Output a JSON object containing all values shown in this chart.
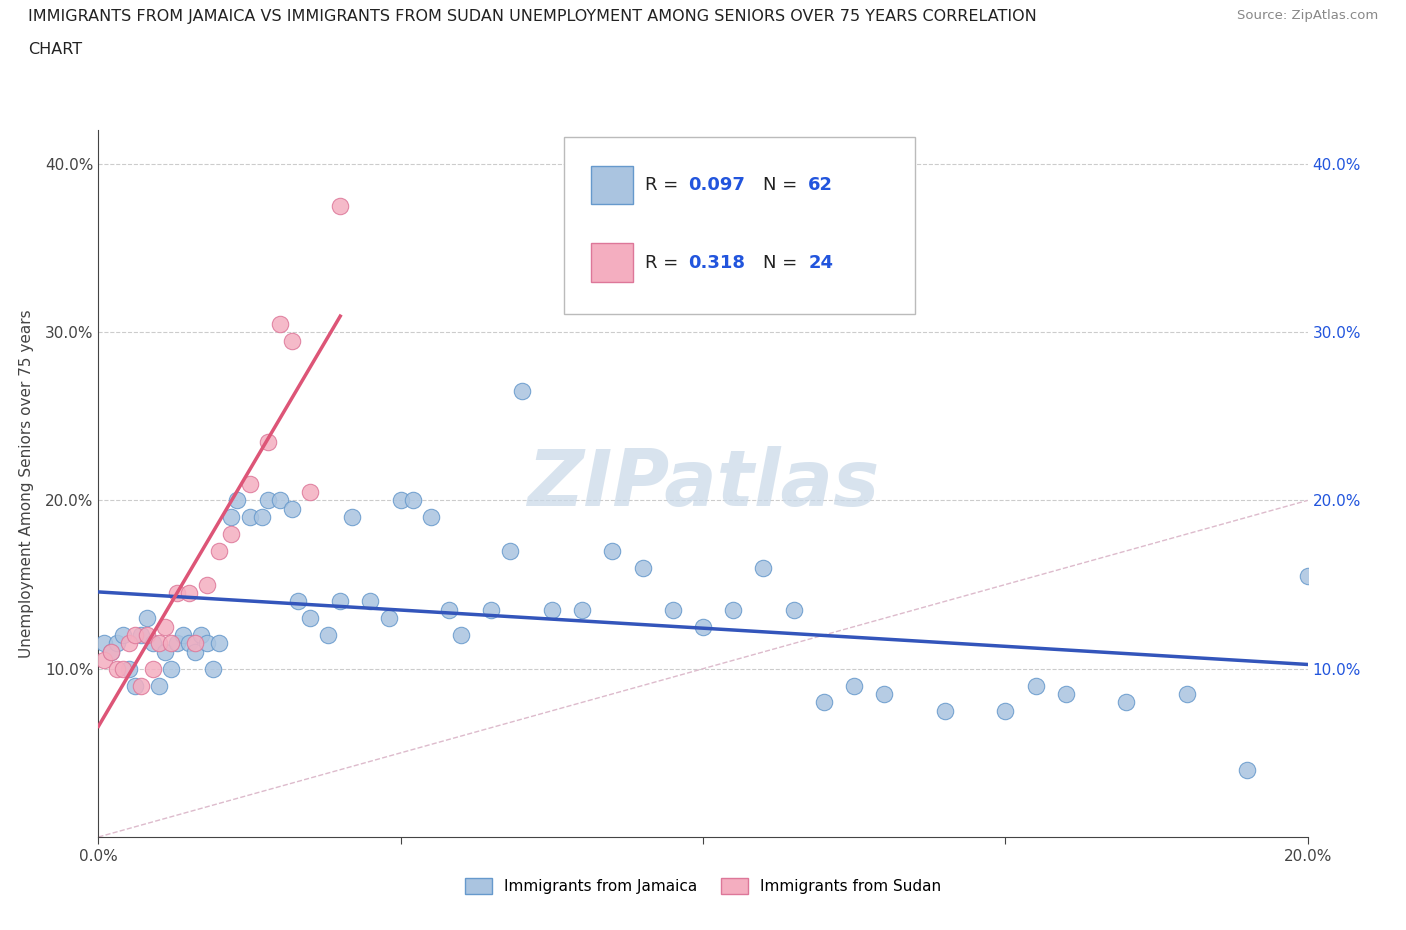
{
  "title_line1": "IMMIGRANTS FROM JAMAICA VS IMMIGRANTS FROM SUDAN UNEMPLOYMENT AMONG SENIORS OVER 75 YEARS CORRELATION",
  "title_line2": "CHART",
  "source": "Source: ZipAtlas.com",
  "ylabel": "Unemployment Among Seniors over 75 years",
  "xlim": [
    0.0,
    0.2
  ],
  "ylim": [
    0.0,
    0.42
  ],
  "jamaica_color": "#aac4e0",
  "sudan_color": "#f4aec0",
  "jamaica_edge": "#6699cc",
  "sudan_edge": "#dd7799",
  "jamaica_line_color": "#3355bb",
  "sudan_line_color": "#dd5577",
  "diag_color": "#cccccc",
  "jamaica_R": 0.097,
  "jamaica_N": 62,
  "sudan_R": 0.318,
  "sudan_N": 24,
  "legend_color": "#2255dd",
  "watermark_color": "#c8d8e8",
  "bg_color": "#ffffff",
  "grid_color": "#cccccc",
  "right_tick_color": "#2255dd",
  "jamaica_x": [
    0.001,
    0.002,
    0.003,
    0.004,
    0.005,
    0.006,
    0.007,
    0.008,
    0.009,
    0.01,
    0.011,
    0.012,
    0.013,
    0.014,
    0.015,
    0.016,
    0.017,
    0.018,
    0.019,
    0.02,
    0.022,
    0.023,
    0.025,
    0.027,
    0.028,
    0.03,
    0.032,
    0.033,
    0.035,
    0.038,
    0.04,
    0.042,
    0.045,
    0.048,
    0.05,
    0.052,
    0.055,
    0.058,
    0.06,
    0.065,
    0.068,
    0.07,
    0.075,
    0.08,
    0.085,
    0.09,
    0.095,
    0.1,
    0.105,
    0.11,
    0.115,
    0.12,
    0.125,
    0.13,
    0.14,
    0.15,
    0.155,
    0.16,
    0.17,
    0.18,
    0.19,
    0.2
  ],
  "jamaica_y": [
    0.115,
    0.11,
    0.115,
    0.12,
    0.1,
    0.09,
    0.12,
    0.13,
    0.115,
    0.09,
    0.11,
    0.1,
    0.115,
    0.12,
    0.115,
    0.11,
    0.12,
    0.115,
    0.1,
    0.115,
    0.19,
    0.2,
    0.19,
    0.19,
    0.2,
    0.2,
    0.195,
    0.14,
    0.13,
    0.12,
    0.14,
    0.19,
    0.14,
    0.13,
    0.2,
    0.2,
    0.19,
    0.135,
    0.12,
    0.135,
    0.17,
    0.265,
    0.135,
    0.135,
    0.17,
    0.16,
    0.135,
    0.125,
    0.135,
    0.16,
    0.135,
    0.08,
    0.09,
    0.085,
    0.075,
    0.075,
    0.09,
    0.085,
    0.08,
    0.085,
    0.04,
    0.155
  ],
  "sudan_x": [
    0.001,
    0.002,
    0.003,
    0.004,
    0.005,
    0.006,
    0.007,
    0.008,
    0.009,
    0.01,
    0.011,
    0.012,
    0.013,
    0.015,
    0.016,
    0.018,
    0.02,
    0.022,
    0.025,
    0.028,
    0.03,
    0.032,
    0.035,
    0.04
  ],
  "sudan_y": [
    0.105,
    0.11,
    0.1,
    0.1,
    0.115,
    0.12,
    0.09,
    0.12,
    0.1,
    0.115,
    0.125,
    0.115,
    0.145,
    0.145,
    0.115,
    0.15,
    0.17,
    0.18,
    0.21,
    0.235,
    0.305,
    0.295,
    0.205,
    0.375
  ]
}
